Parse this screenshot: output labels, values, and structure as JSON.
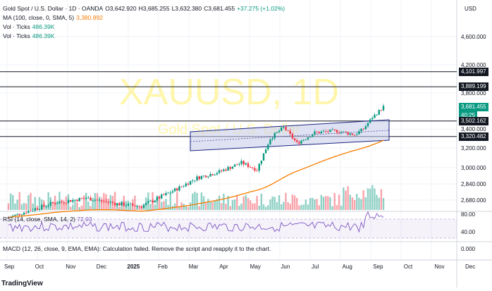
{
  "legend": {
    "title": "Gold Spot / U.S. Dollar · 1D · OANDA",
    "o": "O3,642.920",
    "h": "H3,685.255",
    "l": "L3,632.380",
    "c": "C3,681.455",
    "change": "+37.275 (+1.02%)",
    "ma_label": "MA (100, close, 0, SMA, 5)",
    "ma_value": "3,380.892",
    "vol1_label": "Vol · Ticks",
    "vol1_value": "486.39K",
    "vol2_label": "Vol · Ticks",
    "vol2_value": "486.39K"
  },
  "watermark": {
    "symbol": "XAUUSD, 1D",
    "name": "Gold Spot / U.S. Dollar"
  },
  "currency": "USD",
  "price_axis": {
    "ticks": [
      "4,600.000",
      "4,200.000",
      "3,800.000",
      "3,400.000",
      "3,200.000",
      "3,000.000",
      "2,840.000",
      "2,680.000"
    ],
    "tags": [
      {
        "label": "4,101.997",
        "price": 4101.997,
        "color": "#131722"
      },
      {
        "label": "3,889.199",
        "price": 3889.199,
        "color": "#131722"
      },
      {
        "label": "3,681.455",
        "price": 3681.455,
        "color": "#089981"
      },
      {
        "label": "40:25",
        "price": 3681.455,
        "color": "#089981",
        "sub": true
      },
      {
        "label": "3,502.162",
        "price": 3502.162,
        "color": "#131722"
      },
      {
        "label": "3,320.482",
        "price": 3320.482,
        "color": "#131722"
      }
    ]
  },
  "horizontal_lines": [
    4101.997,
    3889.199,
    3502.162,
    3320.482
  ],
  "rsi": {
    "label": "RSI (14, close, SMA, 14, 2)",
    "value": "72.93",
    "ticks": [
      "80.00",
      "40.00"
    ],
    "overbought": 70,
    "oversold": 30
  },
  "macd": {
    "label": "MACD (12, 26, close, 9, EMA, EMA): Calculation failed. Remove the script and reapply it to the chart.",
    "tick": "0.000"
  },
  "time_axis": [
    "Sep",
    "Oct",
    "Nov",
    "Dec",
    "2025",
    "Feb",
    "Mar",
    "Apr",
    "May",
    "Jun",
    "Jul",
    "Aug",
    "Sep",
    "Oct",
    "Nov",
    "Dec"
  ],
  "brand": "TradingView",
  "colors": {
    "up": "#089981",
    "down": "#f23645",
    "ma": "#f57c00",
    "channel_fill": "#c5cae9",
    "channel_line": "#1a237e",
    "rsi": "#7e57c2",
    "watermark": "#fff59d"
  }
}
